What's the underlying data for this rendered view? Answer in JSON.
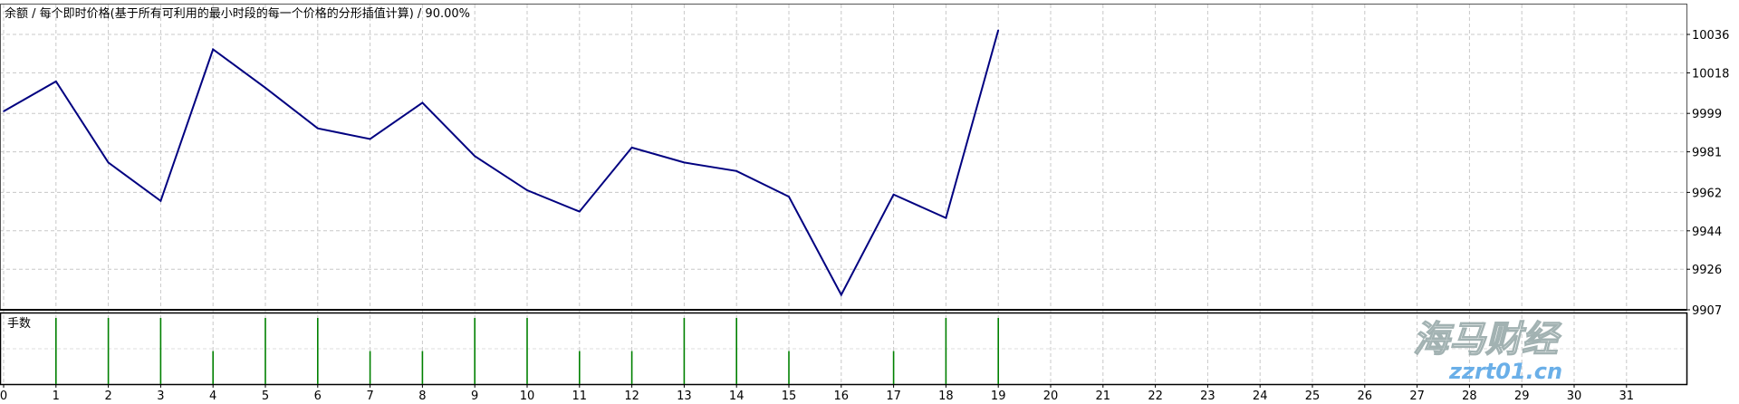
{
  "chart_data": [
    {
      "type": "line",
      "title": "余额 / 每个即时价格(基于所有可利用的最小时段的每一个价格的分形插值计算) / 90.00%",
      "x": [
        0,
        1,
        2,
        3,
        4,
        5,
        6,
        7,
        8,
        9,
        10,
        11,
        12,
        13,
        14,
        15,
        16,
        17,
        18,
        19
      ],
      "values": [
        10000,
        10014,
        9976,
        9958,
        10029,
        10011,
        9992,
        9987,
        10004,
        9979,
        9963,
        9953,
        9983,
        9976,
        9972,
        9960,
        9914,
        9961,
        9950,
        10038
      ],
      "x_ticks": [
        "0",
        "1",
        "2",
        "3",
        "4",
        "5",
        "6",
        "7",
        "8",
        "9",
        "10",
        "11",
        "12",
        "13",
        "14",
        "15",
        "16",
        "17",
        "18",
        "19",
        "20",
        "21",
        "22",
        "23",
        "24",
        "25",
        "26",
        "27",
        "28",
        "29",
        "30",
        "31"
      ],
      "y_ticks": [
        "10036",
        "10018",
        "9999",
        "9981",
        "9962",
        "9944",
        "9926",
        "9907"
      ],
      "xlim": [
        0,
        32
      ],
      "ylim": [
        9907,
        10043
      ],
      "y_axis_side": "right",
      "grid": true,
      "line_color": "#000080"
    },
    {
      "type": "bar",
      "title": "手数",
      "x": [
        1,
        2,
        3,
        4,
        5,
        6,
        7,
        8,
        9,
        10,
        11,
        12,
        13,
        14,
        15,
        17,
        18,
        19
      ],
      "values": [
        2,
        2,
        2,
        1,
        2,
        2,
        1,
        1,
        2,
        2,
        1,
        1,
        2,
        2,
        1,
        1,
        2,
        2
      ],
      "bar_color": "#008000",
      "grid": true
    }
  ],
  "watermark": {
    "text": "海马财经",
    "url_text": "zzrt01.cn"
  }
}
